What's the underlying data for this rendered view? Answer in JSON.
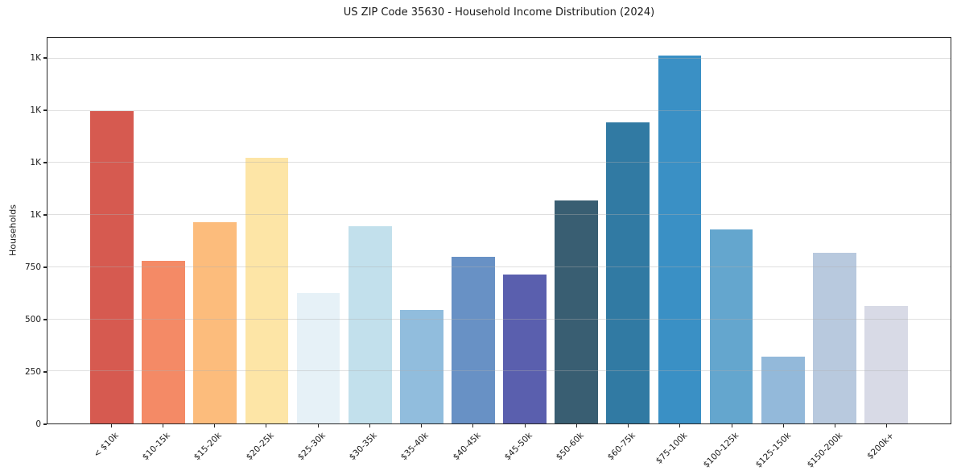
{
  "chart_data": {
    "type": "bar",
    "title": "US ZIP Code 35630 - Household Income Distribution (2024)",
    "xlabel": "",
    "ylabel": "Households",
    "categories": [
      "< $10k",
      "$10-15k",
      "$15-20k",
      "$20-25k",
      "$25-30k",
      "$30-35k",
      "$35-40k",
      "$40-45k",
      "$45-50k",
      "$50-60k",
      "$60-75k",
      "$75-100k",
      "$100-125k",
      "$125-150k",
      "$150-200k",
      "$200k+"
    ],
    "values": [
      1500,
      780,
      965,
      1275,
      625,
      945,
      545,
      800,
      715,
      1070,
      1445,
      1765,
      930,
      320,
      820,
      565
    ],
    "bar_colors": [
      "#d65a50",
      "#f48a66",
      "#fcbc7c",
      "#fde5a6",
      "#e6f1f7",
      "#c2e0ec",
      "#91bddd",
      "#6891c5",
      "#5a5fae",
      "#395e72",
      "#317aa3",
      "#3a90c5",
      "#64a6ce",
      "#93b9da",
      "#b8c9de",
      "#d8dae6"
    ],
    "ylim": [
      0,
      1850
    ],
    "yticks": [
      {
        "value": 0,
        "label": "0"
      },
      {
        "value": 250,
        "label": "250"
      },
      {
        "value": 500,
        "label": "500"
      },
      {
        "value": 750,
        "label": "750"
      },
      {
        "value": 1000,
        "label": "1K"
      },
      {
        "value": 1250,
        "label": "1K"
      },
      {
        "value": 1500,
        "label": "1K"
      },
      {
        "value": 1750,
        "label": "1K"
      }
    ],
    "grid": "horizontal",
    "legend": "none",
    "background_color": "#ffffff",
    "spine_color": "#262626",
    "grid_color": "#b0b0b0"
  }
}
